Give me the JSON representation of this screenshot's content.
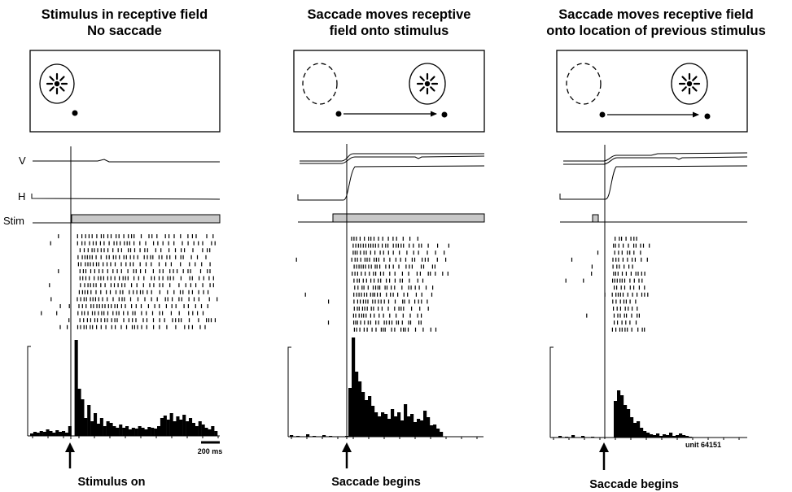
{
  "panels": [
    {
      "id": "left",
      "title_lines": [
        "Stimulus in receptive field",
        "No saccade"
      ],
      "caption": "Stimulus on",
      "saccade": false,
      "field_solid": true,
      "stim_flash": false
    },
    {
      "id": "middle",
      "title_lines": [
        "Saccade moves receptive",
        "field onto stimulus"
      ],
      "caption": "Saccade begins",
      "saccade": true,
      "field_solid": false,
      "stim_flash": false
    },
    {
      "id": "right",
      "title_lines": [
        "Saccade moves receptive field",
        "onto location of previous stimulus"
      ],
      "caption": "Saccade begins",
      "saccade": true,
      "field_solid": false,
      "stim_flash": true
    }
  ],
  "trace_labels": {
    "v": "V",
    "h": "H",
    "stim": "Stim"
  },
  "scale_bar_label": "200 ms",
  "unit_label": "unit 64151"
}
